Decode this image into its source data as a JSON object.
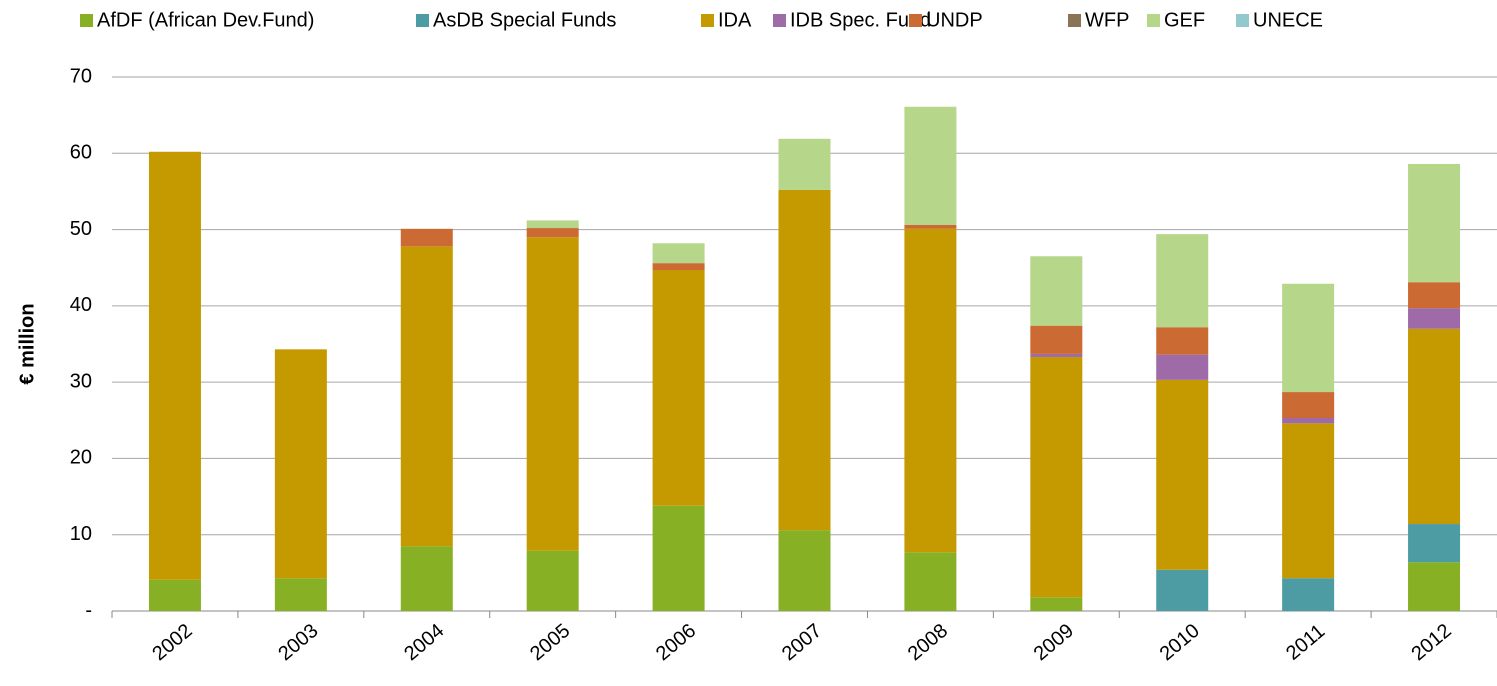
{
  "chart_data": {
    "type": "stacked_bar",
    "y_label": "€ million",
    "categories": [
      "2002",
      "2003",
      "2004",
      "2005",
      "2006",
      "2007",
      "2008",
      "2009",
      "2010",
      "2011",
      "2012"
    ],
    "series": [
      {
        "name": "AfDF (African Dev.Fund)",
        "color": "#87b024",
        "values": [
          4.1,
          4.3,
          8.5,
          7.9,
          13.8,
          10.6,
          7.7,
          1.8,
          0,
          0,
          6.4
        ]
      },
      {
        "name": "AsDB Special Funds",
        "color": "#4e9ca3",
        "values": [
          0,
          0,
          0,
          0,
          0,
          0,
          0,
          0,
          5.4,
          4.3,
          5.0
        ]
      },
      {
        "name": "IDA",
        "color": "#c49a00",
        "values": [
          56.1,
          30.0,
          39.3,
          41.1,
          30.9,
          44.6,
          42.4,
          31.5,
          24.9,
          20.3,
          25.6
        ]
      },
      {
        "name": "IDB Spec. Fund",
        "color": "#9e6aa8",
        "values": [
          0,
          0,
          0,
          0,
          0,
          0,
          0,
          0.4,
          3.3,
          0.7,
          2.7
        ]
      },
      {
        "name": "UNDP",
        "color": "#cc6a33",
        "values": [
          0,
          0,
          2.3,
          1.2,
          0.9,
          0,
          0.5,
          3.7,
          3.6,
          3.4,
          3.4
        ]
      },
      {
        "name": "WFP",
        "color": "#8b7355",
        "values": [
          0,
          0,
          0,
          0,
          0,
          0,
          0,
          0,
          0,
          0,
          0
        ]
      },
      {
        "name": "GEF",
        "color": "#b6d68a",
        "values": [
          0,
          0,
          0,
          1.0,
          2.6,
          6.7,
          15.5,
          9.1,
          12.2,
          14.2,
          15.5
        ]
      },
      {
        "name": "UNECE",
        "color": "#93c9cc",
        "values": [
          0,
          0,
          0,
          0,
          0,
          0,
          0,
          0,
          0,
          0,
          0
        ]
      }
    ],
    "ylim": [
      0,
      70
    ],
    "yticks": [
      {
        "value": 0,
        "label": "-"
      },
      10,
      20,
      30,
      40,
      50,
      60,
      70
    ],
    "grid": true,
    "legend": "top"
  }
}
